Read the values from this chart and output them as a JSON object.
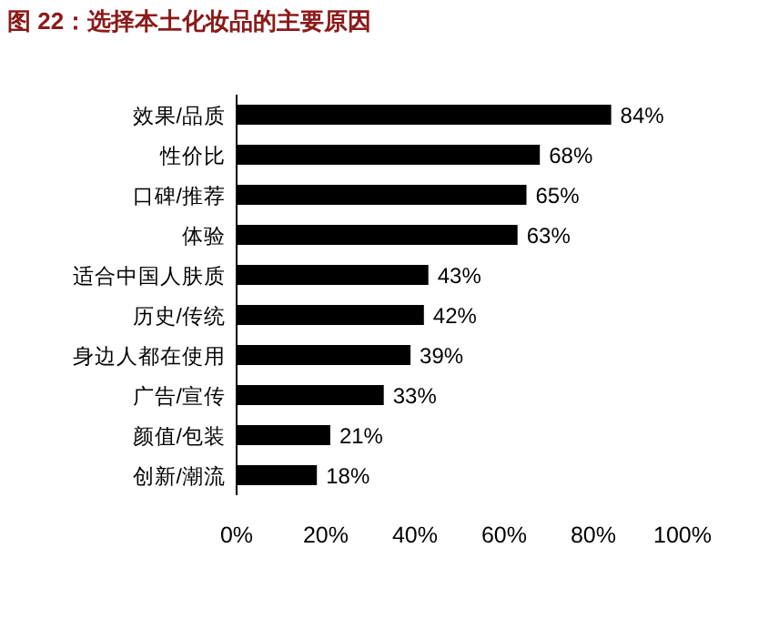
{
  "chart_data": {
    "type": "bar",
    "orientation": "horizontal",
    "title": "图 22：选择本土化妆品的主要原因",
    "categories": [
      "效果/品质",
      "性价比",
      "口碑/推荐",
      "体验",
      "适合中国人肤质",
      "历史/传统",
      "身边人都在使用",
      "广告/宣传",
      "颜值/包装",
      "创新/潮流"
    ],
    "values": [
      84,
      68,
      65,
      63,
      43,
      42,
      39,
      33,
      21,
      18
    ],
    "value_labels": [
      "84%",
      "68%",
      "65%",
      "63%",
      "43%",
      "42%",
      "39%",
      "33%",
      "21%",
      "18%"
    ],
    "color": "#000000",
    "xlim": [
      0,
      100
    ],
    "xticks": [
      {
        "value": 0,
        "label": "0%"
      },
      {
        "value": 20,
        "label": "20%"
      },
      {
        "value": 40,
        "label": "40%"
      },
      {
        "value": 60,
        "label": "60%"
      },
      {
        "value": 80,
        "label": "80%"
      },
      {
        "value": 100,
        "label": "100%"
      }
    ],
    "grid": false
  }
}
